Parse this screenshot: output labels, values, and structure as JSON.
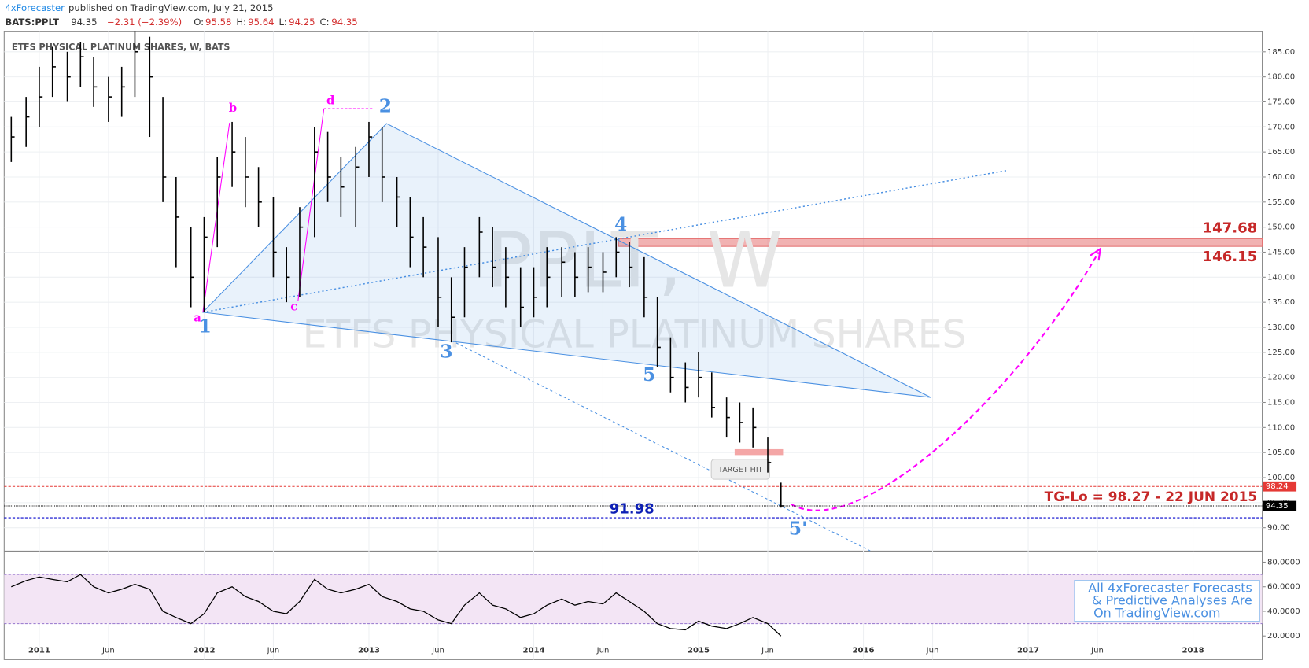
{
  "header": {
    "publisher": "4xForecaster",
    "published": "published on TradingView.com, July 21, 2015",
    "symbol": "BATS:PPLT",
    "last": "94.35",
    "change": "−2.31 (−2.39%)",
    "o_label": "O:",
    "open": "95.58",
    "h_label": "H:",
    "high": "95.64",
    "l_label": "L:",
    "low": "94.25",
    "c_label": "C:",
    "close": "94.35"
  },
  "chart_data": {
    "type": "ohlc",
    "title": "ETFS PHYSICAL PLATINUM SHARES, W, BATS",
    "watermark": [
      "PPLT, W",
      "ETFS PHYSICAL PLATINUM SHARES"
    ],
    "x": [
      2010.83,
      2010.92,
      2011.0,
      2011.08,
      2011.17,
      2011.25,
      2011.33,
      2011.42,
      2011.5,
      2011.58,
      2011.67,
      2011.75,
      2011.83,
      2011.92,
      2012.0,
      2012.08,
      2012.17,
      2012.25,
      2012.33,
      2012.42,
      2012.5,
      2012.58,
      2012.67,
      2012.75,
      2012.83,
      2012.92,
      2013.0,
      2013.08,
      2013.17,
      2013.25,
      2013.33,
      2013.42,
      2013.5,
      2013.58,
      2013.67,
      2013.75,
      2013.83,
      2013.92,
      2014.0,
      2014.08,
      2014.17,
      2014.25,
      2014.33,
      2014.42,
      2014.5,
      2014.58,
      2014.67,
      2014.75,
      2014.83,
      2014.92,
      2015.0,
      2015.08,
      2015.17,
      2015.25,
      2015.33,
      2015.42,
      2015.5
    ],
    "high": [
      172,
      176,
      182,
      186,
      185,
      187,
      184,
      180,
      182,
      189,
      188,
      176,
      160,
      150,
      152,
      164,
      171,
      168,
      162,
      156,
      146,
      154,
      170,
      169,
      164,
      166,
      171,
      170,
      160,
      156,
      152,
      148,
      140,
      146,
      152,
      150,
      146,
      142,
      142,
      146,
      146,
      145,
      146,
      145,
      148,
      147,
      144,
      136,
      128,
      123,
      125,
      121,
      116,
      115,
      114,
      108,
      99
    ],
    "low": [
      163,
      166,
      170,
      176,
      175,
      178,
      174,
      171,
      172,
      176,
      168,
      155,
      142,
      134,
      133,
      146,
      158,
      154,
      150,
      140,
      135,
      136,
      148,
      155,
      152,
      150,
      160,
      155,
      150,
      142,
      140,
      130,
      127,
      132,
      140,
      138,
      134,
      130,
      132,
      134,
      136,
      136,
      137,
      137,
      140,
      138,
      132,
      122,
      117,
      115,
      116,
      112,
      108,
      107,
      106,
      101,
      94
    ],
    "close": [
      168,
      172,
      176,
      182,
      180,
      184,
      178,
      176,
      178,
      185,
      180,
      160,
      152,
      140,
      148,
      160,
      165,
      160,
      155,
      145,
      140,
      150,
      165,
      160,
      158,
      162,
      168,
      160,
      156,
      148,
      146,
      136,
      132,
      142,
      149,
      142,
      140,
      134,
      136,
      140,
      143,
      140,
      142,
      141,
      145,
      142,
      136,
      126,
      120,
      118,
      120,
      114,
      112,
      111,
      110,
      103,
      94.35
    ],
    "color": "#000000",
    "xlim": [
      2010.787,
      2018.42
    ],
    "xticks": [
      2011,
      {
        "value": 2011.42,
        "label": "Jun"
      },
      2012,
      {
        "value": 2012.42,
        "label": "Jun"
      },
      2013,
      {
        "value": 2013.42,
        "label": "Jun"
      },
      2014,
      {
        "value": 2014.42,
        "label": "Jun"
      },
      2015,
      {
        "value": 2015.42,
        "label": "Jun"
      },
      2016,
      {
        "value": 2016.42,
        "label": "Jun"
      },
      2017,
      {
        "value": 2017.42,
        "label": "Jun"
      },
      2018
    ],
    "ylim": [
      85.33,
      189
    ],
    "yticks": [
      {
        "value": 90,
        "label": "90.00"
      },
      {
        "value": 95,
        "label": "95.00"
      },
      {
        "value": 100,
        "label": "100.00"
      },
      {
        "value": 105,
        "label": "105.00"
      },
      {
        "value": 110,
        "label": "110.00"
      },
      {
        "value": 115,
        "label": "115.00"
      },
      {
        "value": 120,
        "label": "120.00"
      },
      {
        "value": 125,
        "label": "125.00"
      },
      {
        "value": 130,
        "label": "130.00"
      },
      {
        "value": 135,
        "label": "135.00"
      },
      {
        "value": 140,
        "label": "140.00"
      },
      {
        "value": 145,
        "label": "145.00"
      },
      {
        "value": 150,
        "label": "150.00"
      },
      {
        "value": 155,
        "label": "155.00"
      },
      {
        "value": 160,
        "label": "160.00"
      },
      {
        "value": 165,
        "label": "165.00"
      },
      {
        "value": 170,
        "label": "170.00"
      },
      {
        "value": 175,
        "label": "175.00"
      },
      {
        "value": 180,
        "label": "180.00"
      },
      {
        "value": 185,
        "label": "185.00"
      }
    ],
    "grid": true,
    "price_lines": [
      {
        "value": 98.24,
        "color": "#e53935"
      },
      {
        "value": 94.35,
        "color": "#000000"
      }
    ],
    "support": 91.98,
    "zone": [
      146.15,
      147.68
    ],
    "target_label": "TG-Lo = 98.27 - 22 JUN 2015",
    "target_hit": "TARGET HIT",
    "wave_labels": [
      "a",
      "b",
      "c",
      "d",
      "1",
      "2",
      "3",
      "4",
      "5",
      "5'"
    ],
    "info_box": [
      "All 4xForecaster Forecasts",
      "& Predictive Analyses Are",
      "On TradingView.com"
    ],
    "rsi": {
      "values": [
        60,
        65,
        68,
        66,
        64,
        70,
        60,
        55,
        58,
        62,
        58,
        40,
        35,
        30,
        38,
        55,
        60,
        52,
        48,
        40,
        38,
        48,
        66,
        58,
        55,
        58,
        62,
        52,
        48,
        42,
        40,
        33,
        30,
        45,
        55,
        45,
        42,
        35,
        38,
        45,
        50,
        45,
        48,
        46,
        55,
        48,
        40,
        30,
        26,
        25,
        32,
        28,
        26,
        30,
        35,
        30,
        20
      ],
      "color": "#000000",
      "band": [
        30,
        70
      ],
      "ylim": [
        0.7,
        89
      ],
      "yticks": [
        {
          "value": 20,
          "label": "20.0000"
        },
        {
          "value": 40,
          "label": "40.0000"
        },
        {
          "value": 60,
          "label": "60.0000"
        },
        {
          "value": 80,
          "label": "80.0000"
        }
      ]
    }
  }
}
